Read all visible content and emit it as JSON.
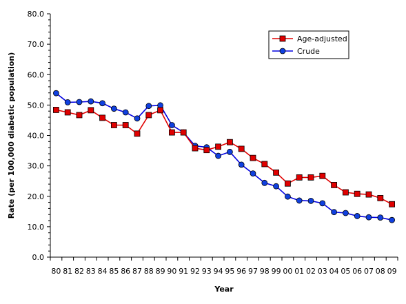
{
  "chart_data": {
    "type": "line",
    "xlabel": "Year",
    "ylabel": "Rate (per 100,000 diabetic population)",
    "ylim": [
      0,
      80
    ],
    "ytick_step": 10,
    "grid": false,
    "legend_position": "top-right",
    "categories": [
      "80",
      "81",
      "82",
      "83",
      "84",
      "85",
      "86",
      "87",
      "88",
      "89",
      "90",
      "91",
      "92",
      "93",
      "94",
      "95",
      "96",
      "97",
      "98",
      "99",
      "00",
      "01",
      "02",
      "03",
      "04",
      "05",
      "06",
      "07",
      "08",
      "09"
    ],
    "y_tick_labels": [
      "0.0",
      "10.0",
      "20.0",
      "30.0",
      "40.0",
      "50.0",
      "60.0",
      "70.0",
      "80.0"
    ],
    "series": [
      {
        "name": "Age-adjusted",
        "color": "#e00000",
        "marker": "square",
        "values": [
          48.4,
          47.6,
          46.7,
          48.3,
          45.8,
          43.4,
          43.4,
          40.6,
          46.7,
          48.3,
          41.0,
          41.0,
          35.8,
          35.2,
          36.3,
          37.8,
          35.6,
          32.6,
          30.6,
          27.8,
          24.2,
          26.2,
          26.2,
          26.7,
          23.7,
          21.3,
          20.8,
          20.6,
          19.4,
          17.4
        ]
      },
      {
        "name": "Crude",
        "color": "#0000e0",
        "marker": "circle",
        "values": [
          53.9,
          50.9,
          51.0,
          51.2,
          50.6,
          48.8,
          47.6,
          45.6,
          49.7,
          49.9,
          43.4,
          41.0,
          36.6,
          36.1,
          33.3,
          34.6,
          30.4,
          27.5,
          24.4,
          23.3,
          19.9,
          18.6,
          18.5,
          17.7,
          14.8,
          14.5,
          13.5,
          13.1,
          13.0,
          12.2
        ]
      }
    ]
  }
}
